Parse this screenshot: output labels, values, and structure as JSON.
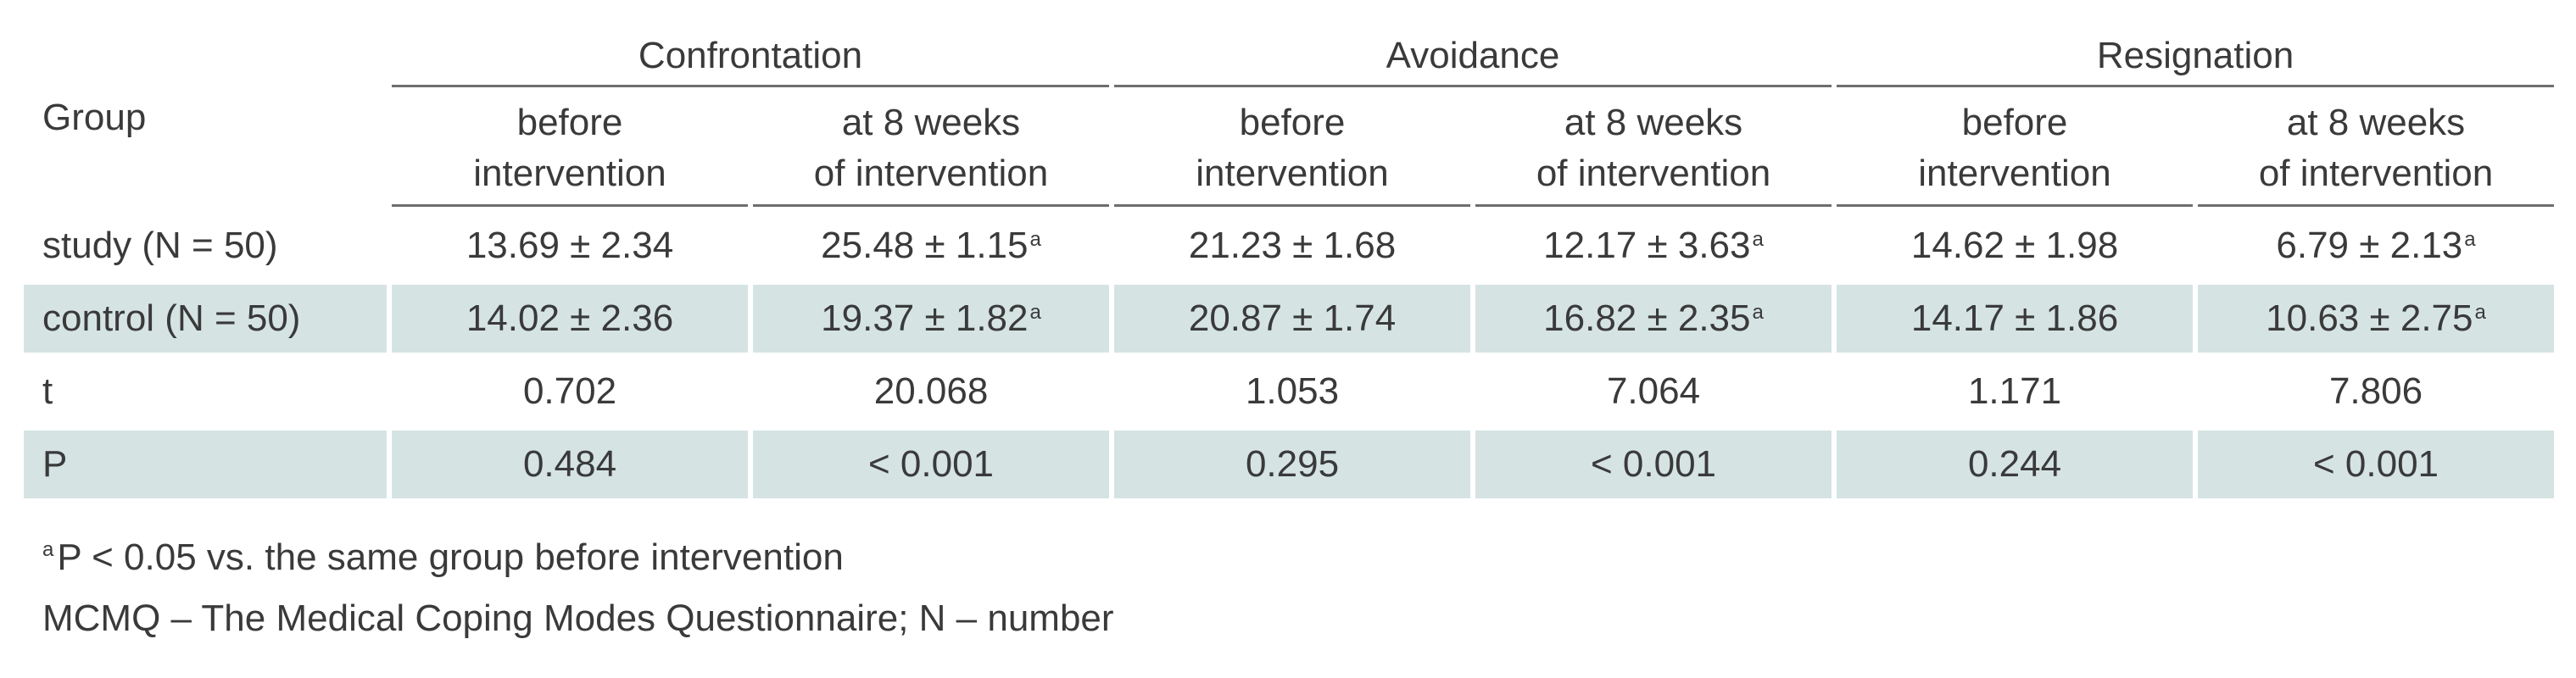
{
  "table": {
    "group_header": "Group",
    "column_groups": [
      "Confrontation",
      "Avoidance",
      "Resignation"
    ],
    "subheaders": [
      [
        "before",
        "intervention"
      ],
      [
        "at 8 weeks",
        "of intervention"
      ]
    ],
    "rows": [
      {
        "label": "study (N = 50)",
        "shaded": false,
        "cells": [
          {
            "v": "13.69 ± 2.34",
            "sup": ""
          },
          {
            "v": "25.48 ± 1.15",
            "sup": "a"
          },
          {
            "v": "21.23 ± 1.68",
            "sup": ""
          },
          {
            "v": "12.17 ± 3.63",
            "sup": "a"
          },
          {
            "v": "14.62 ± 1.98",
            "sup": ""
          },
          {
            "v": "6.79 ± 2.13",
            "sup": "a"
          }
        ]
      },
      {
        "label": "control (N = 50)",
        "shaded": true,
        "cells": [
          {
            "v": "14.02 ± 2.36",
            "sup": ""
          },
          {
            "v": "19.37 ± 1.82",
            "sup": "a"
          },
          {
            "v": "20.87 ± 1.74",
            "sup": ""
          },
          {
            "v": "16.82 ± 2.35",
            "sup": "a"
          },
          {
            "v": "14.17 ± 1.86",
            "sup": ""
          },
          {
            "v": "10.63 ± 2.75",
            "sup": "a"
          }
        ]
      },
      {
        "label": "t",
        "shaded": false,
        "cells": [
          {
            "v": "0.702",
            "sup": ""
          },
          {
            "v": "20.068",
            "sup": ""
          },
          {
            "v": "1.053",
            "sup": ""
          },
          {
            "v": "7.064",
            "sup": ""
          },
          {
            "v": "1.171",
            "sup": ""
          },
          {
            "v": "7.806",
            "sup": ""
          }
        ]
      },
      {
        "label": "P",
        "shaded": true,
        "cells": [
          {
            "v": "0.484",
            "sup": ""
          },
          {
            "v": "< 0.001",
            "sup": ""
          },
          {
            "v": "0.295",
            "sup": ""
          },
          {
            "v": "< 0.001",
            "sup": ""
          },
          {
            "v": "0.244",
            "sup": ""
          },
          {
            "v": "< 0.001",
            "sup": ""
          }
        ]
      }
    ]
  },
  "notes": {
    "footnote_marker": "a",
    "footnote_text": "P < 0.05 vs. the same group before intervention",
    "abbreviations": "MCMQ – The Medical Coping Modes Questionnaire; N – number"
  },
  "colors": {
    "row_shade": "#d5e3e3",
    "text": "#3a3a3a",
    "rule": "#6e6e6e"
  }
}
